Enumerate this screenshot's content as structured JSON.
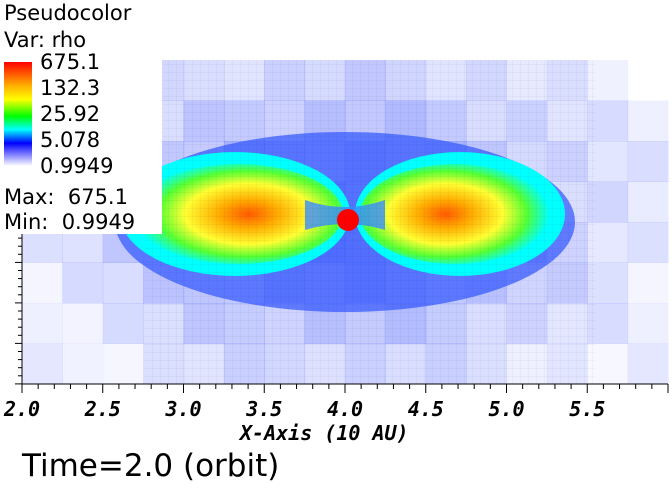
{
  "legend": {
    "title": "Pseudocolor",
    "var_label": "Var: rho",
    "ticks": [
      "675.1",
      "132.3",
      "25.92",
      "5.078",
      "0.9949"
    ],
    "max_label": "Max:  675.1",
    "min_label": "Min:  0.9949"
  },
  "time_label": "Time=2.0 (orbit)",
  "chart_data": {
    "type": "heatmap",
    "variable": "rho",
    "xlabel": "X-Axis (10 AU)",
    "xlim": [
      2.0,
      6.0
    ],
    "x_ticks": [
      "2.0",
      "2.5",
      "3.0",
      "3.5",
      "4.0",
      "4.5",
      "5.0",
      "5.5"
    ],
    "x_tick_values": [
      2.0,
      2.5,
      3.0,
      3.5,
      4.0,
      4.5,
      5.0,
      5.5
    ],
    "color_scale": "log",
    "color_range": [
      0.9949,
      675.1
    ],
    "color_ticks": [
      675.1,
      132.3,
      25.92,
      5.078,
      0.9949
    ],
    "max": 675.1,
    "min": 0.9949,
    "time": "2.0",
    "colormap_colors": [
      "#ff0000",
      "#ffaa00",
      "#ffff00",
      "#00ff00",
      "#00ffff",
      "#0000ff",
      "#ffffff"
    ]
  }
}
